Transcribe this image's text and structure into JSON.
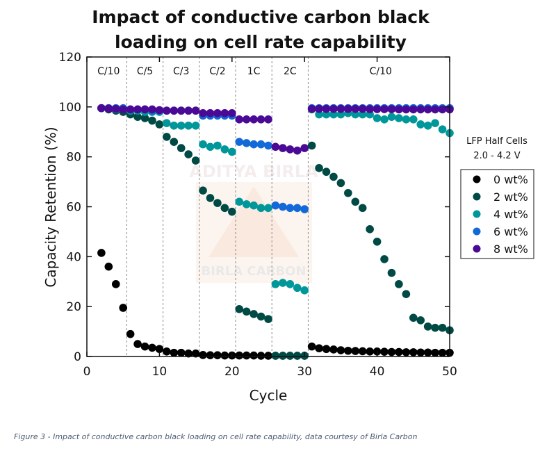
{
  "chart_data": {
    "type": "scatter",
    "title": [
      "Impact of conductive carbon black",
      "loading on cell rate capability"
    ],
    "xlabel": "Cycle",
    "ylabel": "Capacity Retention (%)",
    "xlim": [
      0,
      50
    ],
    "ylim": [
      0,
      120
    ],
    "xticks": [
      0,
      10,
      20,
      30,
      40,
      50
    ],
    "yticks": [
      0,
      20,
      40,
      60,
      80,
      100,
      120
    ],
    "grid": false,
    "rate_boundaries": [
      5.5,
      10.5,
      15.5,
      20.5,
      25.5,
      30.5
    ],
    "rate_labels": [
      {
        "label": "C/10",
        "cycle": 3
      },
      {
        "label": "C/5",
        "cycle": 8
      },
      {
        "label": "C/3",
        "cycle": 13
      },
      {
        "label": "C/2",
        "cycle": 18
      },
      {
        "label": "1C",
        "cycle": 23
      },
      {
        "label": "2C",
        "cycle": 28
      },
      {
        "label": "C/10",
        "cycle": 40.5
      }
    ],
    "annotation": [
      "LFP Half Cells",
      "2.0 - 4.2 V"
    ],
    "legend_position": "right",
    "x": [
      2,
      3,
      4,
      5,
      6,
      7,
      8,
      9,
      10,
      11,
      12,
      13,
      14,
      15,
      16,
      17,
      18,
      19,
      20,
      21,
      22,
      23,
      24,
      25,
      26,
      27,
      28,
      29,
      30,
      31,
      32,
      33,
      34,
      35,
      36,
      37,
      38,
      39,
      40,
      41,
      42,
      43,
      44,
      45,
      46,
      47,
      48,
      49,
      50
    ],
    "series": [
      {
        "name": "0 wt%",
        "color": "#000000",
        "values": [
          41.5,
          36,
          29,
          19.5,
          9,
          5,
          4,
          3.5,
          3,
          2,
          1.5,
          1.5,
          1.2,
          1.2,
          0.6,
          0.5,
          0.5,
          0.4,
          0.4,
          0.4,
          0.4,
          0.4,
          0.3,
          0.3,
          0.3,
          0.3,
          0.3,
          0.3,
          0.3,
          4,
          3.3,
          3,
          2.8,
          2.5,
          2.3,
          2.2,
          2.1,
          2,
          2,
          1.9,
          1.8,
          1.8,
          1.7,
          1.7,
          1.6,
          1.6,
          1.5,
          1.5,
          1.5
        ]
      },
      {
        "name": "2 wt%",
        "color": "#004a45",
        "values": [
          99.5,
          99,
          98.5,
          98,
          97,
          96,
          95.5,
          94.5,
          93,
          88,
          86,
          83.5,
          81,
          78.5,
          66.5,
          63.5,
          61.5,
          59.5,
          58,
          19,
          18,
          17,
          16,
          15,
          0.3,
          0.3,
          0.3,
          0.3,
          0.3,
          84.5,
          75.5,
          74,
          72,
          69.5,
          65.5,
          62,
          59.5,
          51,
          46,
          39,
          33.5,
          29,
          25,
          15.5,
          14.5,
          12,
          11.5,
          11.5,
          10.5
        ]
      },
      {
        "name": "4 wt%",
        "color": "#00979a",
        "values": [
          99.5,
          99.5,
          99,
          99,
          98.5,
          98.5,
          98,
          98,
          98,
          93.5,
          92.5,
          92.5,
          92.5,
          92.5,
          85,
          84,
          84.5,
          83,
          82,
          62,
          61,
          60.5,
          59.5,
          59.5,
          29,
          29.5,
          29,
          27.5,
          26.5,
          99,
          97,
          97,
          97,
          97,
          97.5,
          97,
          97,
          97,
          95.5,
          95,
          96,
          95.5,
          95,
          95,
          93,
          92.5,
          93.5,
          91,
          89.5
        ]
      },
      {
        "name": "6 wt%",
        "color": "#1469d8",
        "values": [
          99.5,
          99.5,
          99.5,
          99.5,
          99,
          99,
          99,
          98.5,
          98.5,
          98.5,
          98.5,
          98.5,
          98.5,
          98.5,
          96.5,
          96.5,
          96.5,
          96.5,
          96.5,
          86,
          85.5,
          85,
          85,
          84.5,
          60.5,
          60,
          59.5,
          59.5,
          59,
          99.5,
          99.5,
          99.5,
          99.5,
          99.5,
          99.5,
          99.5,
          99.5,
          99.5,
          99.5,
          99.5,
          99.5,
          99.5,
          99.5,
          99.5,
          99.5,
          99.5,
          99.5,
          99.5,
          99.5
        ]
      },
      {
        "name": "8 wt%",
        "color": "#4b0a96",
        "values": [
          99.5,
          99.3,
          99.2,
          99,
          99,
          99,
          99,
          99,
          98.7,
          98.5,
          98.5,
          98.5,
          98.5,
          98.5,
          97.5,
          97.5,
          97.5,
          97.5,
          97.5,
          95,
          95,
          95,
          95,
          95,
          84,
          83.5,
          83,
          82.5,
          83.5,
          99.2,
          99.2,
          99.2,
          99.2,
          99.2,
          99.2,
          99.2,
          99.2,
          99.1,
          99.1,
          99.1,
          99.1,
          99,
          99,
          99,
          99,
          99,
          99,
          99,
          99
        ]
      }
    ]
  },
  "watermark": [
    "ADITYA BIRLA",
    "BIRLA CARBON"
  ],
  "caption": "Figure 3 - Impact of conductive carbon black loading on cell rate capability, data courtesy of Birla Carbon"
}
